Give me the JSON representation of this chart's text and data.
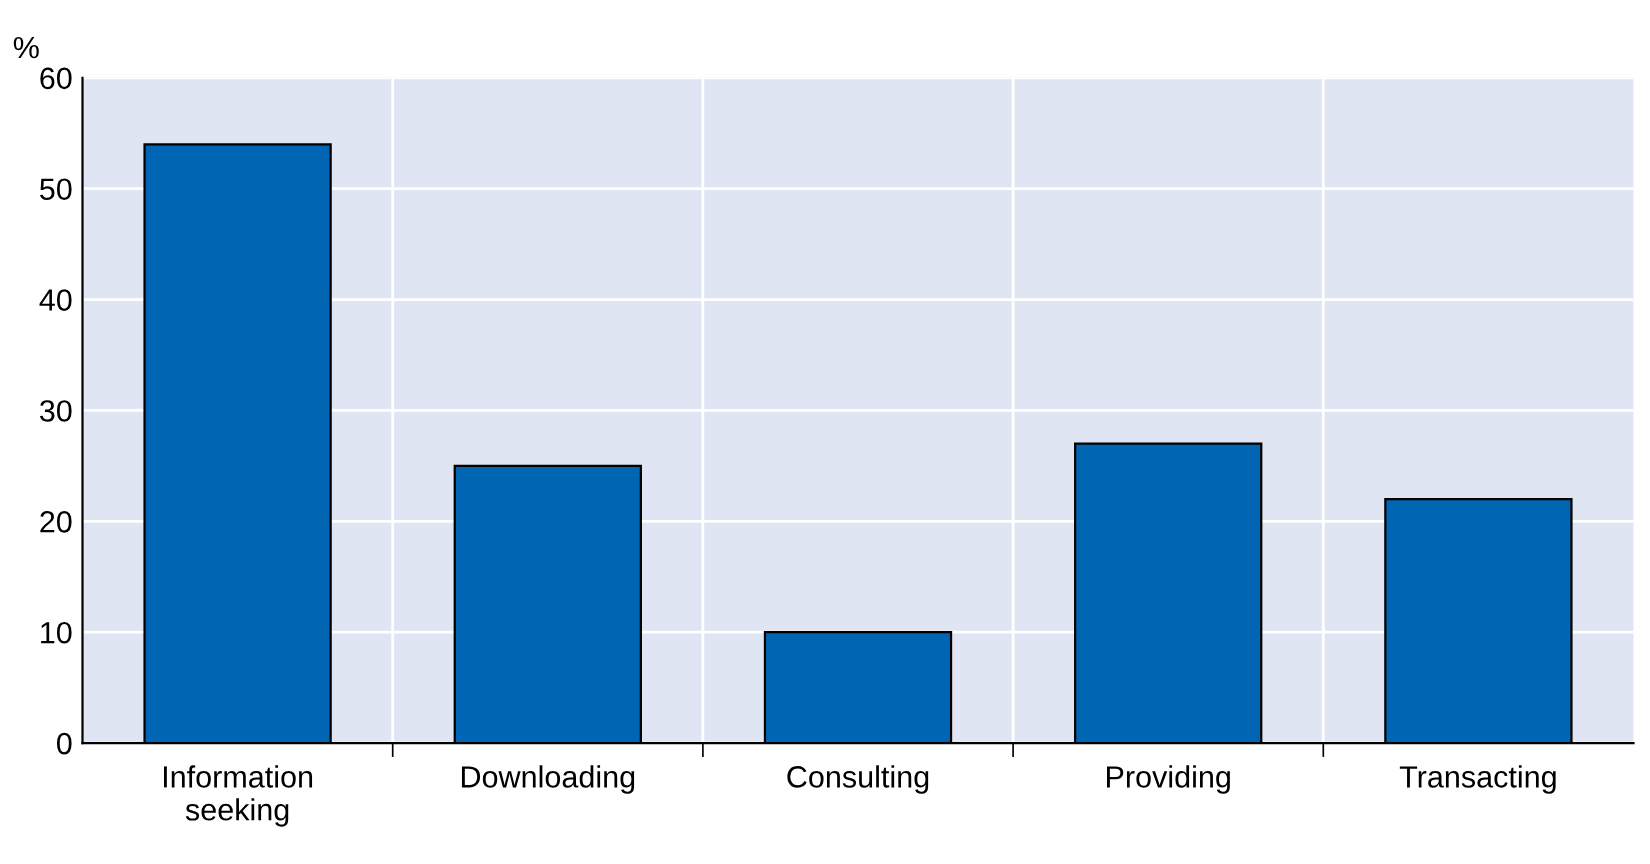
{
  "chart_data": {
    "type": "bar",
    "ylabel": "%",
    "categories": [
      "Information seeking",
      "Downloading",
      "Consulting",
      "Providing",
      "Transacting"
    ],
    "values": [
      54,
      25,
      10,
      27,
      22
    ],
    "color": "#0066b3",
    "ylim": [
      0,
      60
    ],
    "yticks": [
      0,
      10,
      20,
      30,
      40,
      50,
      60
    ],
    "grid": true
  }
}
